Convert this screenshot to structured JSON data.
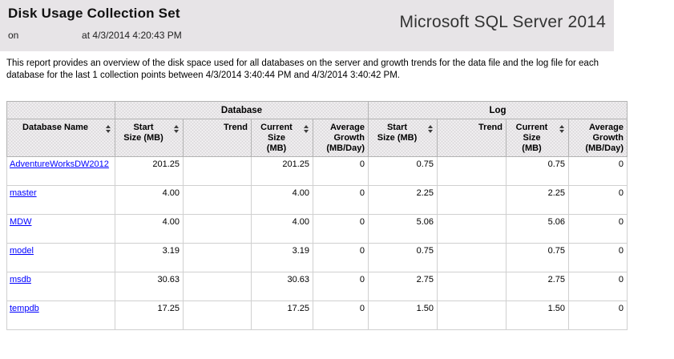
{
  "header": {
    "title": "Disk Usage Collection Set",
    "on_label": "on",
    "server_name": "",
    "timestamp_label": "at 4/3/2014 4:20:43 PM",
    "brand": "Microsoft SQL Server 2014"
  },
  "description": "This report provides an overview of the disk space used for all databases on the server and growth trends for the data file and the log file for each database for the last 1 collection points between 4/3/2014 3:40:44 PM and 4/3/2014 3:40:42 PM.",
  "colors": {
    "banner_background": "#e7e4e7",
    "link": "#0000ff",
    "table_outer_border": "#9b9b9b",
    "header_fill": "#e0dde0"
  },
  "icons": {
    "sort": "sort-updown-icon (stacked up/down triangles)"
  },
  "table": {
    "groups": {
      "database": "Database",
      "log": "Log"
    },
    "columns": {
      "name": "Database Name",
      "start": "Start\nSize (MB)",
      "trend": "Trend",
      "current": "Current\nSize\n(MB)",
      "growth": "Average\nGrowth\n(MB/Day)"
    },
    "rows": [
      {
        "name": "AdventureWorksDW2012",
        "db": {
          "start": "201.25",
          "trend": "",
          "current": "201.25",
          "growth": "0"
        },
        "log": {
          "start": "0.75",
          "trend": "",
          "current": "0.75",
          "growth": "0"
        }
      },
      {
        "name": "master",
        "db": {
          "start": "4.00",
          "trend": "",
          "current": "4.00",
          "growth": "0"
        },
        "log": {
          "start": "2.25",
          "trend": "",
          "current": "2.25",
          "growth": "0"
        }
      },
      {
        "name": "MDW",
        "db": {
          "start": "4.00",
          "trend": "",
          "current": "4.00",
          "growth": "0"
        },
        "log": {
          "start": "5.06",
          "trend": "",
          "current": "5.06",
          "growth": "0"
        }
      },
      {
        "name": "model",
        "db": {
          "start": "3.19",
          "trend": "",
          "current": "3.19",
          "growth": "0"
        },
        "log": {
          "start": "0.75",
          "trend": "",
          "current": "0.75",
          "growth": "0"
        }
      },
      {
        "name": "msdb",
        "db": {
          "start": "30.63",
          "trend": "",
          "current": "30.63",
          "growth": "0"
        },
        "log": {
          "start": "2.75",
          "trend": "",
          "current": "2.75",
          "growth": "0"
        }
      },
      {
        "name": "tempdb",
        "db": {
          "start": "17.25",
          "trend": "",
          "current": "17.25",
          "growth": "0"
        },
        "log": {
          "start": "1.50",
          "trend": "",
          "current": "1.50",
          "growth": "0"
        }
      }
    ]
  }
}
